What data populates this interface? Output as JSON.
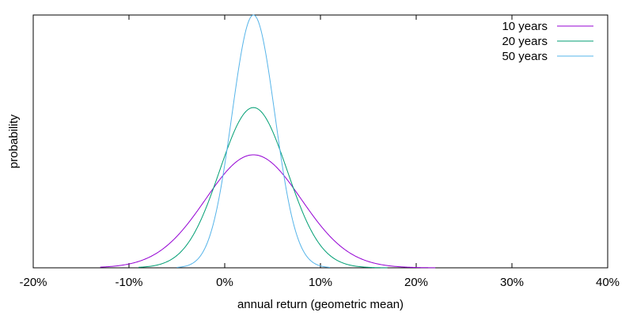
{
  "chart_data": {
    "type": "line",
    "xlabel": "annual return (geometric mean)",
    "ylabel": "probability",
    "xlim": [
      -20,
      40
    ],
    "xticks": [
      -20,
      -10,
      0,
      10,
      20,
      30,
      40
    ],
    "xtick_labels": [
      "-20%",
      "-10%",
      "0%",
      "10%",
      "20%",
      "30%",
      "40%"
    ],
    "ylim": [
      0,
      1
    ],
    "y_ticks_shown": false,
    "grid": false,
    "legend_position": "top-right",
    "series": [
      {
        "name": "10 years",
        "color": "#9400d3",
        "mean": 3.0,
        "std": 5.0,
        "peak": 0.447,
        "x": [
          -13,
          -10,
          -8,
          -6,
          -4,
          -2,
          0,
          2,
          3,
          4,
          6,
          8,
          10,
          12,
          14,
          16,
          18,
          20,
          22
        ],
        "y": [
          0.002,
          0.015,
          0.04,
          0.088,
          0.166,
          0.271,
          0.373,
          0.438,
          0.447,
          0.438,
          0.373,
          0.271,
          0.166,
          0.088,
          0.04,
          0.015,
          0.005,
          0.002,
          0.0
        ]
      },
      {
        "name": "20 years",
        "color": "#009e73",
        "mean": 3.0,
        "std": 3.53,
        "peak": 0.634,
        "x": [
          -9,
          -6,
          -4,
          -2,
          0,
          2,
          3,
          4,
          6,
          8,
          10,
          12,
          14,
          17
        ],
        "y": [
          0.0,
          0.024,
          0.088,
          0.235,
          0.441,
          0.609,
          0.634,
          0.609,
          0.441,
          0.235,
          0.088,
          0.024,
          0.005,
          0.0
        ]
      },
      {
        "name": "50 years",
        "color": "#56b4e9",
        "mean": 3.0,
        "std": 2.24,
        "peak": 1.0,
        "x": [
          -5,
          -3,
          -2,
          -1,
          0,
          1,
          2,
          3,
          4,
          5,
          6,
          7,
          8,
          9,
          11
        ],
        "y": [
          0.002,
          0.028,
          0.083,
          0.203,
          0.407,
          0.671,
          0.905,
          1.0,
          0.905,
          0.671,
          0.407,
          0.203,
          0.083,
          0.028,
          0.002
        ]
      }
    ]
  }
}
